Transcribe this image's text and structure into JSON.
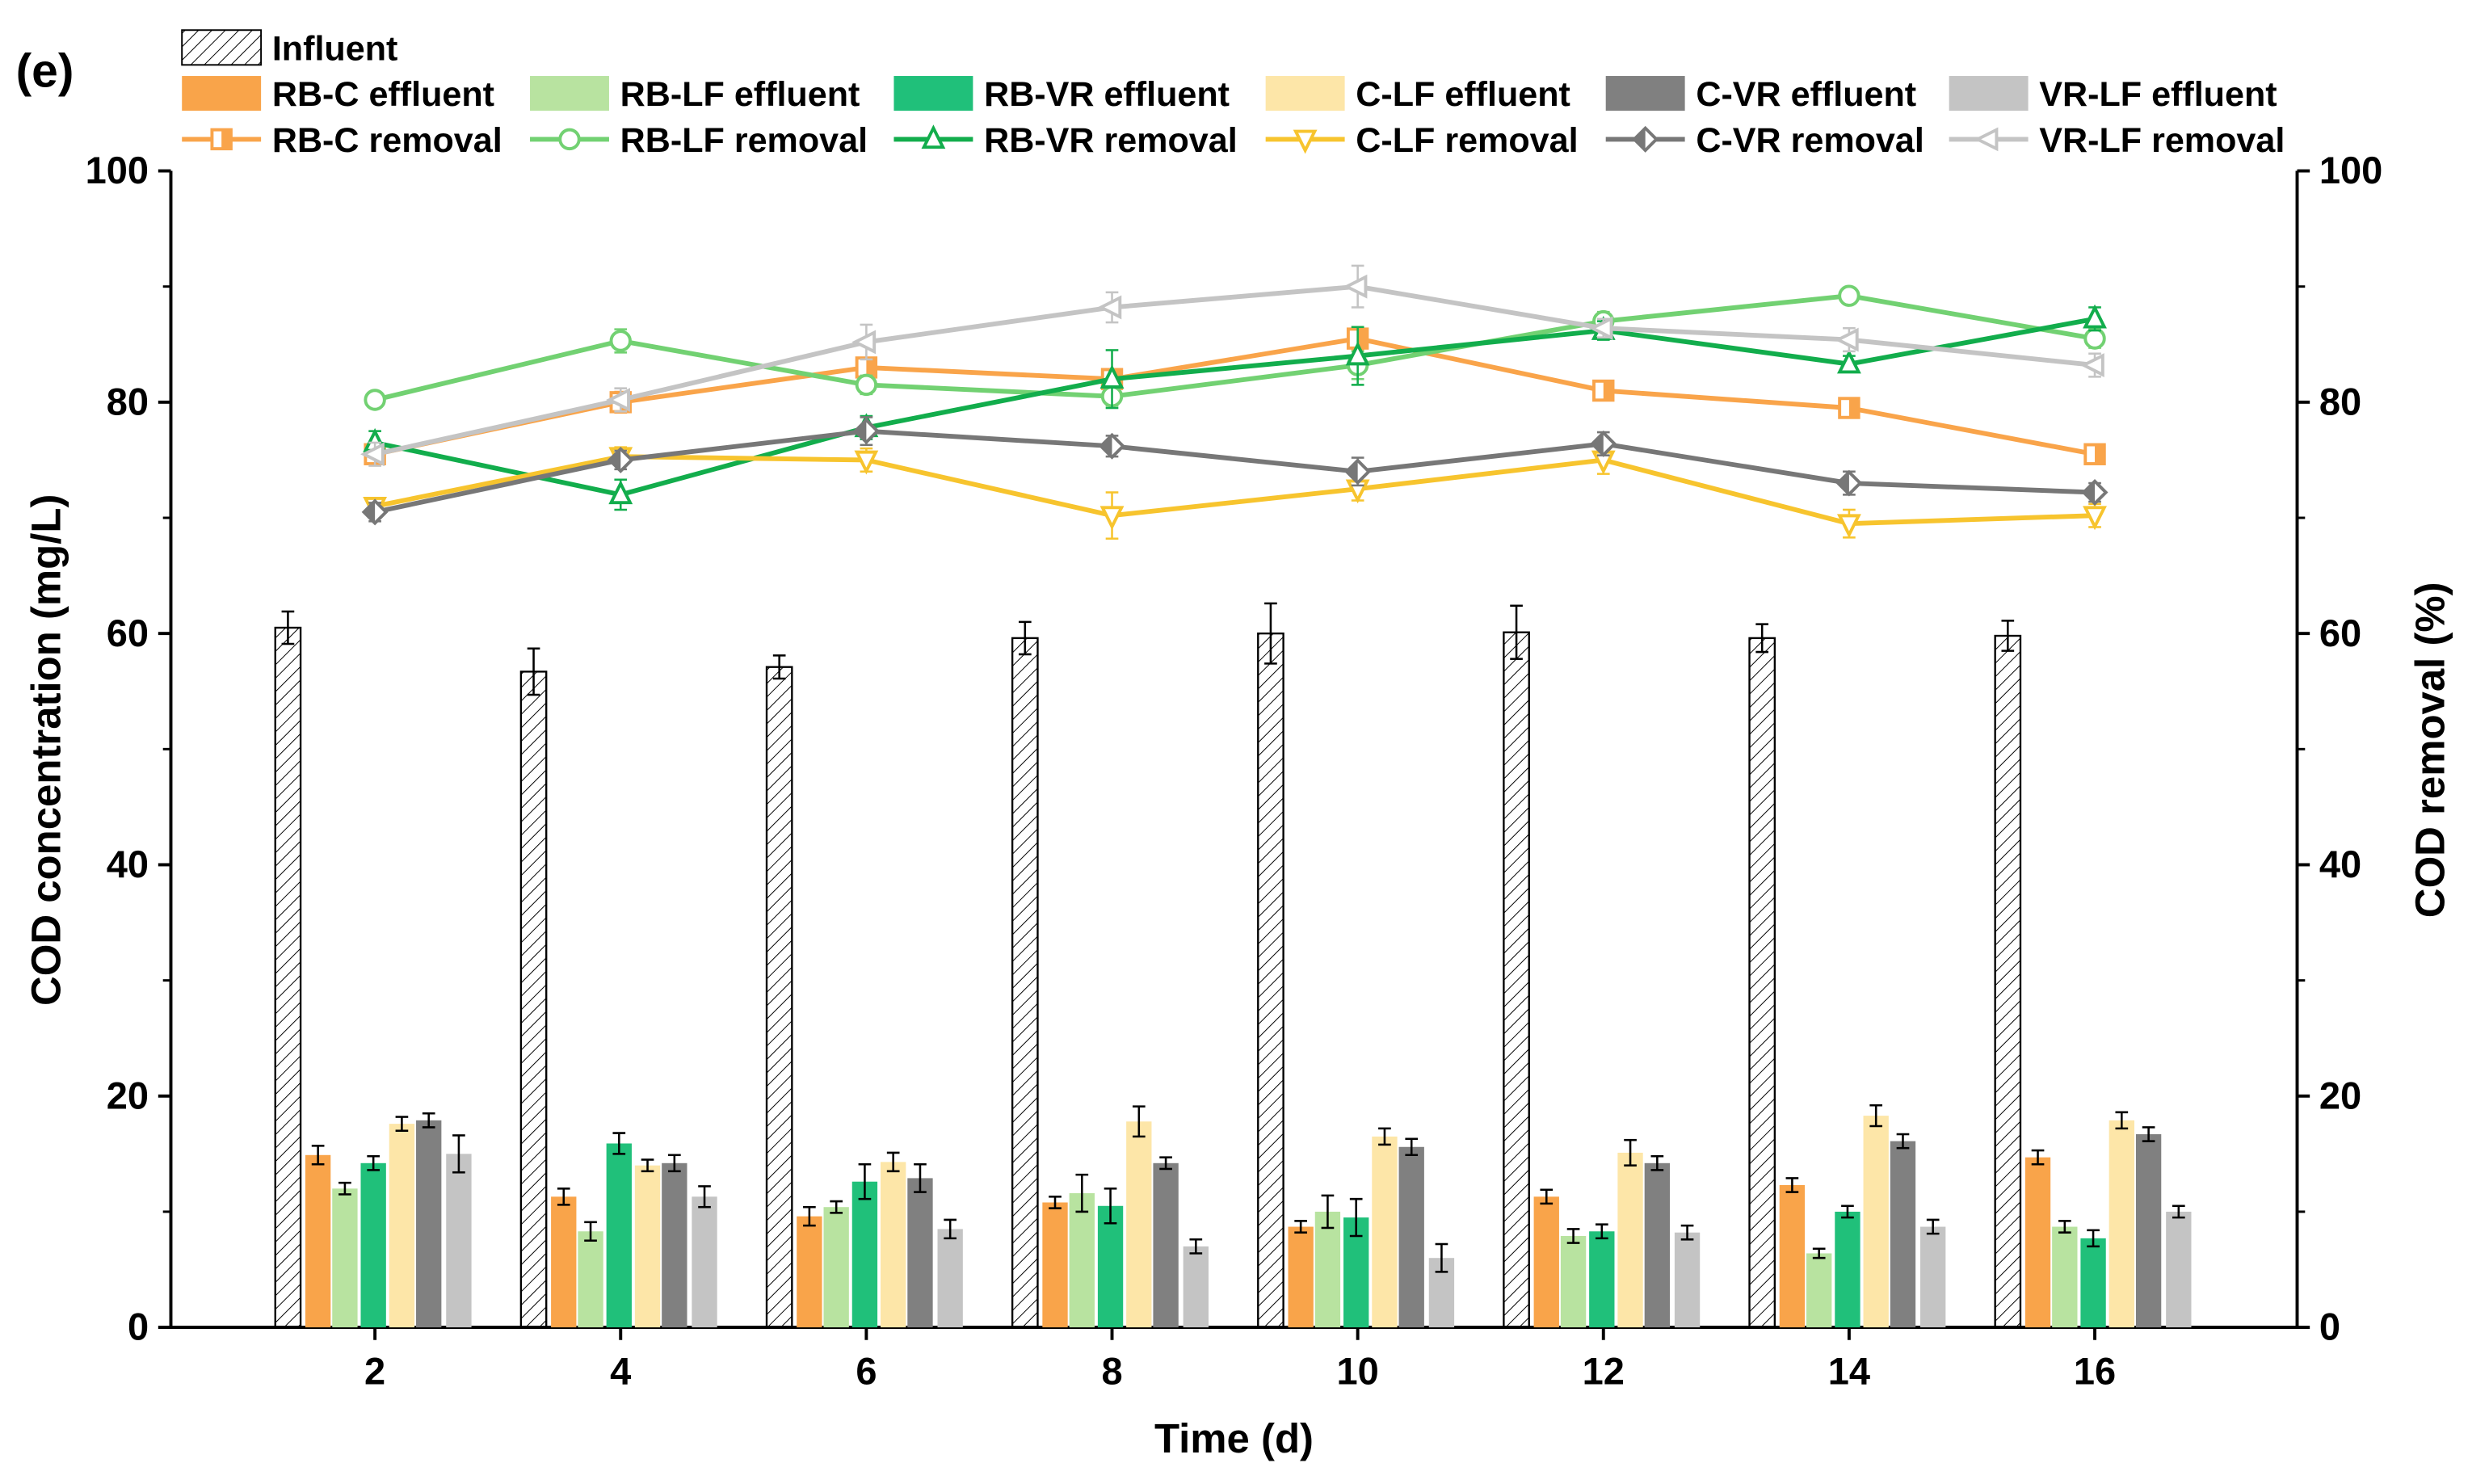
{
  "chart_data": {
    "type": "bar",
    "panel_label": "(e)",
    "xlabel": "Time (d)",
    "ylabel": "COD concentration (mg/L)",
    "y2label": "COD removal (%)",
    "ylim": [
      0,
      100
    ],
    "y2lim": [
      0,
      100
    ],
    "yticks": [
      0,
      20,
      40,
      60,
      80,
      100
    ],
    "categories": [
      "2",
      "4",
      "6",
      "8",
      "10",
      "12",
      "14",
      "16"
    ],
    "influent": {
      "name": "Influent",
      "values": [
        60.5,
        56.7,
        57.1,
        59.6,
        60.0,
        60.1,
        59.6,
        59.8
      ],
      "errors": [
        1.4,
        2.0,
        1.0,
        1.4,
        2.6,
        2.3,
        1.2,
        1.3
      ]
    },
    "bar_series": [
      {
        "name": "RB-C effluent",
        "color": "#f9a44a",
        "values": [
          14.9,
          11.3,
          9.6,
          10.8,
          8.7,
          11.3,
          12.3,
          14.7
        ],
        "errors": [
          0.8,
          0.7,
          0.8,
          0.5,
          0.5,
          0.6,
          0.6,
          0.6
        ]
      },
      {
        "name": "RB-LF effluent",
        "color": "#b8e3a0",
        "values": [
          12.0,
          8.3,
          10.4,
          11.6,
          10.0,
          7.9,
          6.4,
          8.7
        ],
        "errors": [
          0.5,
          0.8,
          0.5,
          1.6,
          1.4,
          0.6,
          0.4,
          0.5
        ]
      },
      {
        "name": "RB-VR effluent",
        "color": "#20c07a",
        "values": [
          14.2,
          15.9,
          12.6,
          10.5,
          9.5,
          8.3,
          10.0,
          7.7
        ],
        "errors": [
          0.6,
          0.9,
          1.5,
          1.5,
          1.6,
          0.6,
          0.5,
          0.7
        ]
      },
      {
        "name": "C-LF effluent",
        "color": "#fde6a8",
        "values": [
          17.6,
          14.0,
          14.3,
          17.8,
          16.5,
          15.1,
          18.3,
          17.9
        ],
        "errors": [
          0.6,
          0.5,
          0.8,
          1.3,
          0.7,
          1.1,
          0.9,
          0.7
        ]
      },
      {
        "name": "C-VR effluent",
        "color": "#808080",
        "values": [
          17.9,
          14.2,
          12.9,
          14.2,
          15.6,
          14.2,
          16.1,
          16.7
        ],
        "errors": [
          0.6,
          0.7,
          1.2,
          0.5,
          0.7,
          0.6,
          0.6,
          0.6
        ]
      },
      {
        "name": "VR-LF effluent",
        "color": "#c4c4c4",
        "values": [
          15.0,
          11.3,
          8.5,
          7.0,
          6.0,
          8.2,
          8.7,
          10.0
        ],
        "errors": [
          1.6,
          0.9,
          0.8,
          0.6,
          1.2,
          0.6,
          0.6,
          0.5
        ]
      }
    ],
    "line_series": [
      {
        "name": "RB-C removal",
        "color": "#f9a44a",
        "marker": "square",
        "values": [
          75.5,
          80.0,
          83.0,
          82.0,
          85.5,
          81.0,
          79.5,
          75.5
        ],
        "errors": [
          0.8,
          0.9,
          0.8,
          0.7,
          1.0,
          0.7,
          0.7,
          0.7
        ]
      },
      {
        "name": "RB-LF removal",
        "color": "#72d172",
        "marker": "circle",
        "values": [
          80.2,
          85.3,
          81.5,
          80.5,
          83.2,
          87.0,
          89.2,
          85.5
        ],
        "errors": [
          0.6,
          1.0,
          0.8,
          0.8,
          1.2,
          0.8,
          0.6,
          0.8
        ]
      },
      {
        "name": "RB-VR removal",
        "color": "#12ad4c",
        "marker": "triangle-up",
        "values": [
          76.5,
          72.0,
          77.8,
          82.0,
          84.0,
          86.2,
          83.3,
          87.2
        ],
        "errors": [
          1.0,
          1.3,
          1.0,
          2.5,
          2.5,
          0.8,
          0.7,
          1.0
        ]
      },
      {
        "name": "C-LF removal",
        "color": "#f7c42e",
        "marker": "triangle-down",
        "values": [
          71.0,
          75.3,
          75.0,
          70.2,
          72.5,
          75.0,
          69.5,
          70.2
        ],
        "errors": [
          0.7,
          0.8,
          1.0,
          2.0,
          1.0,
          1.2,
          1.2,
          1.0
        ]
      },
      {
        "name": "C-VR removal",
        "color": "#777777",
        "marker": "diamond",
        "values": [
          70.5,
          75.0,
          77.5,
          76.2,
          74.0,
          76.4,
          73.0,
          72.2
        ],
        "errors": [
          0.8,
          0.8,
          1.2,
          0.9,
          1.2,
          1.0,
          1.0,
          0.8
        ]
      },
      {
        "name": "VR-LF removal",
        "color": "#c4c4c4",
        "marker": "triangle-left",
        "values": [
          75.5,
          80.2,
          85.2,
          88.2,
          90.0,
          86.4,
          85.4,
          83.2
        ],
        "errors": [
          1.0,
          1.0,
          1.5,
          1.3,
          1.8,
          0.8,
          1.0,
          1.0
        ]
      }
    ],
    "legend_placement": "top"
  }
}
